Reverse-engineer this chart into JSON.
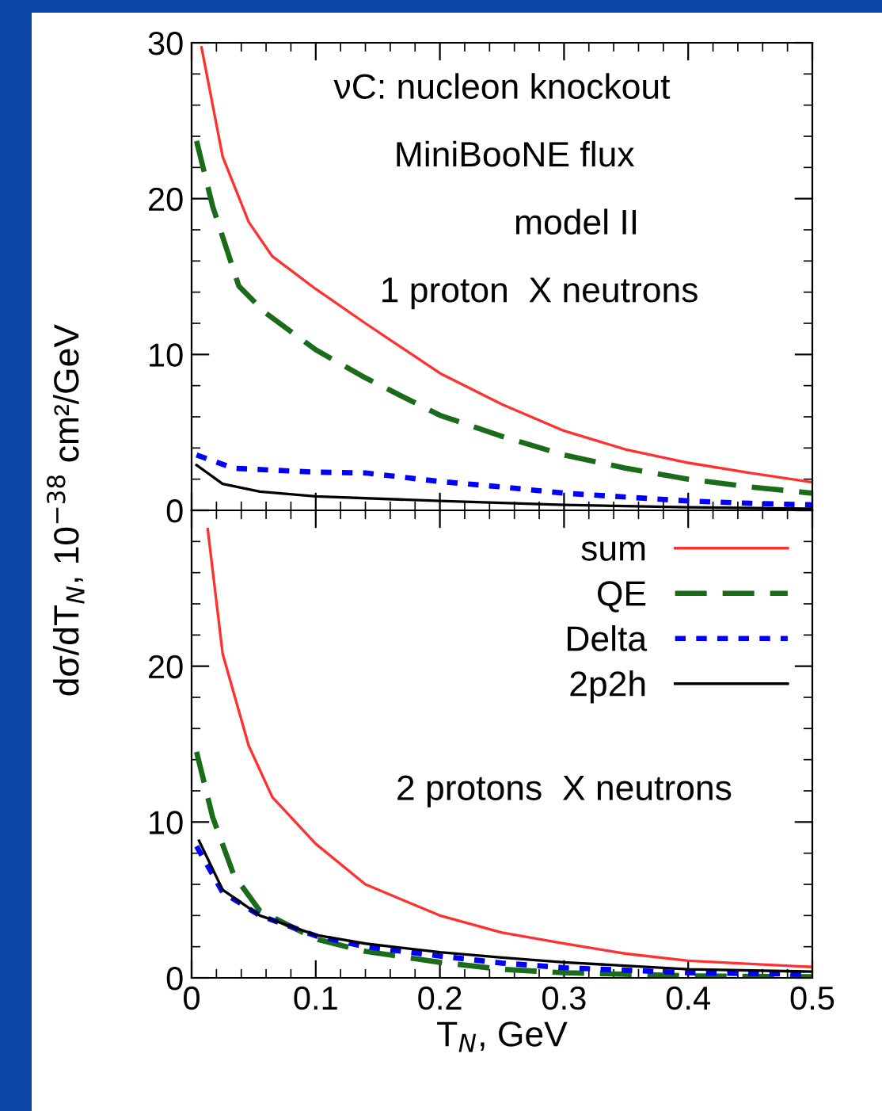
{
  "chart_data": [
    {
      "type": "line",
      "annotations": [
        "νC: nucleon knockout",
        "MiniBooNE flux",
        "model II",
        "1 proton  X neutrons"
      ],
      "xlim": [
        0,
        0.5
      ],
      "xticks": [
        0,
        0.1,
        0.2,
        0.3,
        0.4,
        0.5
      ],
      "ylim": [
        0,
        30
      ],
      "yticks": [
        0,
        10,
        20,
        30
      ],
      "tick_labels": "y",
      "grid": false,
      "legend": false,
      "series": [
        {
          "color": "#ff3030",
          "line_style": "solid",
          "x": [
            0.008,
            0.025,
            0.046,
            0.065,
            0.1,
            0.14,
            0.2,
            0.25,
            0.3,
            0.35,
            0.4,
            0.45,
            0.5
          ],
          "values": [
            29.7,
            22.7,
            18.5,
            16.3,
            14.2,
            12.0,
            8.8,
            6.8,
            5.1,
            3.9,
            3.05,
            2.4,
            1.8
          ]
        },
        {
          "color": "#1a6b1a",
          "line_style": "dashed",
          "x": [
            0.004,
            0.017,
            0.038,
            0.059,
            0.1,
            0.14,
            0.2,
            0.25,
            0.3,
            0.35,
            0.4,
            0.45,
            0.5
          ],
          "values": [
            23.7,
            19.5,
            14.4,
            12.7,
            10.3,
            8.5,
            6.1,
            4.75,
            3.55,
            2.7,
            2.0,
            1.5,
            1.1
          ]
        },
        {
          "color": "#0000ff",
          "line_style": "dotted",
          "x": [
            0.004,
            0.034,
            0.1,
            0.14,
            0.2,
            0.25,
            0.3,
            0.35,
            0.4,
            0.45,
            0.5
          ],
          "values": [
            3.55,
            2.7,
            2.45,
            2.4,
            1.85,
            1.5,
            1.1,
            0.85,
            0.6,
            0.45,
            0.35
          ]
        },
        {
          "color": "#000000",
          "line_style": "solid",
          "x": [
            0.004,
            0.025,
            0.055,
            0.1,
            0.2,
            0.3,
            0.4,
            0.5
          ],
          "values": [
            2.9,
            1.7,
            1.2,
            0.9,
            0.6,
            0.35,
            0.2,
            0.1
          ]
        }
      ]
    },
    {
      "type": "line",
      "xlabel": "T$_{N}$, GeV",
      "ylabel": "dσ/dT$_{N}$, 10$^{−38}$ cm²/GeV",
      "annotations": [
        "2 protons  X neutrons"
      ],
      "xlim": [
        0,
        0.5
      ],
      "xticks": [
        0,
        0.1,
        0.2,
        0.3,
        0.4,
        0.5
      ],
      "ylim": [
        0,
        30
      ],
      "yticks": [
        0,
        10,
        20,
        {
          "value": 30,
          "label": null
        }
      ],
      "grid": false,
      "legend": "top right",
      "series": [
        {
          "name": "sum",
          "color": "#ff3030",
          "line_style": "solid",
          "x": [
            0.013,
            0.025,
            0.046,
            0.065,
            0.1,
            0.14,
            0.2,
            0.25,
            0.3,
            0.35,
            0.4,
            0.45,
            0.5
          ],
          "values": [
            28.8,
            20.8,
            14.9,
            11.6,
            8.6,
            6.0,
            4.0,
            2.9,
            2.2,
            1.55,
            1.1,
            0.9,
            0.7
          ]
        },
        {
          "name": "QE",
          "color": "#1a6b1a",
          "line_style": "dashed",
          "x": [
            0.004,
            0.017,
            0.034,
            0.055,
            0.1,
            0.14,
            0.2,
            0.25,
            0.3,
            0.4,
            0.5
          ],
          "values": [
            14.5,
            10.3,
            6.6,
            4.3,
            2.5,
            1.7,
            1.0,
            0.55,
            0.33,
            0.13,
            0.07
          ]
        },
        {
          "name": "Delta",
          "color": "#0000ff",
          "line_style": "dotted",
          "x": [
            0.004,
            0.025,
            0.055,
            0.1,
            0.14,
            0.2,
            0.25,
            0.3,
            0.4,
            0.5
          ],
          "values": [
            8.45,
            5.5,
            4.0,
            2.7,
            2.0,
            1.4,
            0.95,
            0.65,
            0.33,
            0.23
          ]
        },
        {
          "name": "2p2h",
          "color": "#000000",
          "line_style": "solid",
          "x": [
            0.006,
            0.025,
            0.055,
            0.1,
            0.14,
            0.2,
            0.25,
            0.3,
            0.4,
            0.5
          ],
          "values": [
            8.8,
            5.65,
            4.0,
            2.75,
            2.2,
            1.65,
            1.3,
            1.0,
            0.55,
            0.4
          ]
        }
      ]
    }
  ]
}
